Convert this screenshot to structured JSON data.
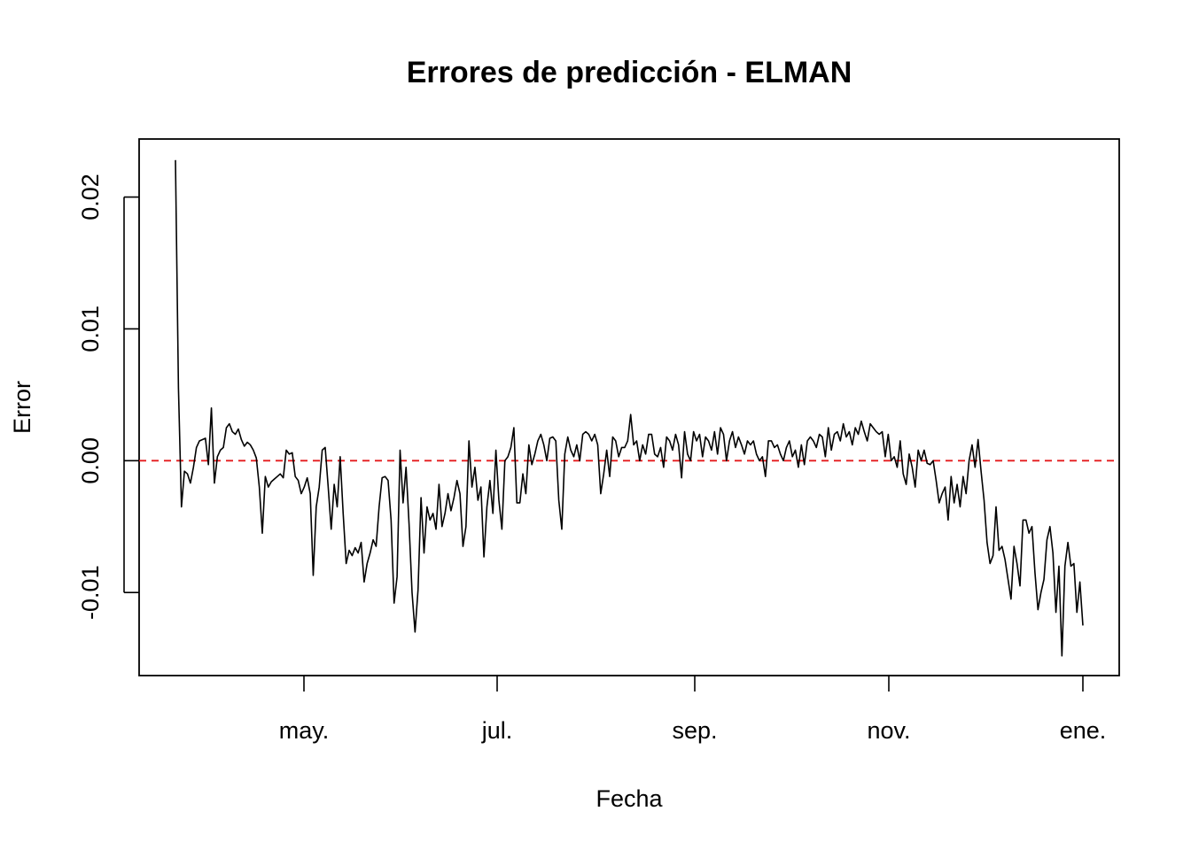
{
  "chart_data": {
    "type": "line",
    "title": "Errores de predicción - ELMAN",
    "xlabel": "Fecha",
    "ylabel": "Error",
    "x_tick_labels": [
      "may.",
      "jul.",
      "sep.",
      "nov.",
      "ene."
    ],
    "y_tick_labels": [
      "-0.01",
      "0.00",
      "0.01",
      "0.02"
    ],
    "y_ticks": [
      -0.01,
      0.0,
      0.01,
      0.02
    ],
    "ylim": [
      -0.0163,
      0.0244
    ],
    "grid": false,
    "reference_line": {
      "y": 0.0,
      "style": "dashed",
      "color": "#e41a1c"
    },
    "line_color": "#000000",
    "y_values": [
      0.0228,
      0.0055,
      -0.0035,
      -0.0008,
      -0.001,
      -0.0017,
      -0.0005,
      0.001,
      0.0015,
      0.0016,
      0.0017,
      -0.0003,
      0.004,
      -0.0017,
      0.0003,
      0.0008,
      0.001,
      0.0025,
      0.0028,
      0.0022,
      0.002,
      0.0024,
      0.0016,
      0.0011,
      0.0014,
      0.0012,
      0.0008,
      0.0002,
      -0.002,
      -0.0055,
      -0.0012,
      -0.002,
      -0.0016,
      -0.0014,
      -0.0012,
      -0.001,
      -0.0013,
      0.0008,
      0.0005,
      0.0006,
      -0.0012,
      -0.0015,
      -0.0025,
      -0.002,
      -0.0013,
      -0.0025,
      -0.0087,
      -0.0035,
      -0.002,
      0.0008,
      0.001,
      -0.002,
      -0.0052,
      -0.0018,
      -0.0035,
      0.0003,
      -0.004,
      -0.0078,
      -0.0068,
      -0.0072,
      -0.0066,
      -0.007,
      -0.0062,
      -0.0092,
      -0.0078,
      -0.007,
      -0.006,
      -0.0065,
      -0.0035,
      -0.0013,
      -0.0012,
      -0.0015,
      -0.0045,
      -0.0108,
      -0.0088,
      0.0008,
      -0.0032,
      -0.0005,
      -0.0048,
      -0.01,
      -0.013,
      -0.0098,
      -0.0028,
      -0.007,
      -0.0035,
      -0.0045,
      -0.004,
      -0.0052,
      -0.0018,
      -0.005,
      -0.004,
      -0.0025,
      -0.0038,
      -0.0028,
      -0.0015,
      -0.0025,
      -0.0065,
      -0.005,
      0.0015,
      -0.002,
      -0.0005,
      -0.003,
      -0.002,
      -0.0073,
      -0.0035,
      -0.0015,
      -0.004,
      0.0008,
      -0.003,
      -0.0052,
      0.0,
      0.0003,
      0.001,
      0.0025,
      -0.0032,
      -0.0032,
      -0.001,
      -0.0025,
      0.0012,
      -0.0003,
      0.0005,
      0.0015,
      0.002,
      0.0012,
      0.0,
      0.0017,
      0.0018,
      0.0015,
      -0.003,
      -0.0052,
      0.0005,
      0.0018,
      0.0008,
      0.0003,
      0.0012,
      0.0,
      0.002,
      0.0022,
      0.002,
      0.0015,
      0.002,
      0.0012,
      -0.0025,
      -0.001,
      0.0008,
      -0.0012,
      0.0018,
      0.0015,
      0.0003,
      0.001,
      0.001,
      0.0015,
      0.0035,
      0.0012,
      0.0015,
      0.0,
      0.0012,
      0.0005,
      0.002,
      0.002,
      0.0005,
      0.0003,
      0.001,
      -0.0005,
      0.0018,
      0.0015,
      0.0008,
      0.002,
      0.0012,
      -0.0013,
      0.0022,
      0.0005,
      0.0,
      0.0022,
      0.0015,
      0.002,
      0.0003,
      0.0018,
      0.0015,
      0.0008,
      0.0022,
      0.0005,
      0.0025,
      0.002,
      0.0,
      0.0015,
      0.0022,
      0.001,
      0.0018,
      0.0012,
      0.0005,
      0.0015,
      0.0012,
      0.0015,
      0.0005,
      0.0,
      0.0003,
      -0.0012,
      0.0015,
      0.0015,
      0.001,
      0.0012,
      0.0005,
      0.0,
      0.001,
      0.0015,
      0.0003,
      0.0008,
      -0.0005,
      0.0012,
      -0.0003,
      0.0015,
      0.0018,
      0.0015,
      0.001,
      0.002,
      0.0018,
      0.0003,
      0.0025,
      0.0008,
      0.002,
      0.0022,
      0.0015,
      0.0028,
      0.0018,
      0.0022,
      0.0012,
      0.0025,
      0.002,
      0.003,
      0.0022,
      0.0015,
      0.0028,
      0.0025,
      0.0022,
      0.002,
      0.0022,
      0.0003,
      0.002,
      0.0,
      0.0003,
      -0.0005,
      0.0015,
      -0.001,
      -0.0018,
      0.0005,
      -0.0005,
      -0.002,
      0.0008,
      0.0,
      0.0008,
      -0.0002,
      -0.0003,
      0.0,
      -0.0015,
      -0.0032,
      -0.0025,
      -0.002,
      -0.0045,
      -0.0012,
      -0.0032,
      -0.0018,
      -0.0035,
      -0.0012,
      -0.0025,
      0.0,
      0.0012,
      -0.0005,
      0.0016,
      -0.0008,
      -0.003,
      -0.0062,
      -0.0078,
      -0.0072,
      -0.0035,
      -0.0068,
      -0.0065,
      -0.0075,
      -0.009,
      -0.0105,
      -0.0065,
      -0.0078,
      -0.0095,
      -0.0045,
      -0.0045,
      -0.0055,
      -0.005,
      -0.0085,
      -0.0113,
      -0.01,
      -0.009,
      -0.006,
      -0.005,
      -0.007,
      -0.0115,
      -0.008,
      -0.0148,
      -0.008,
      -0.0062,
      -0.008,
      -0.0078,
      -0.0115,
      -0.0092,
      -0.0125
    ]
  }
}
